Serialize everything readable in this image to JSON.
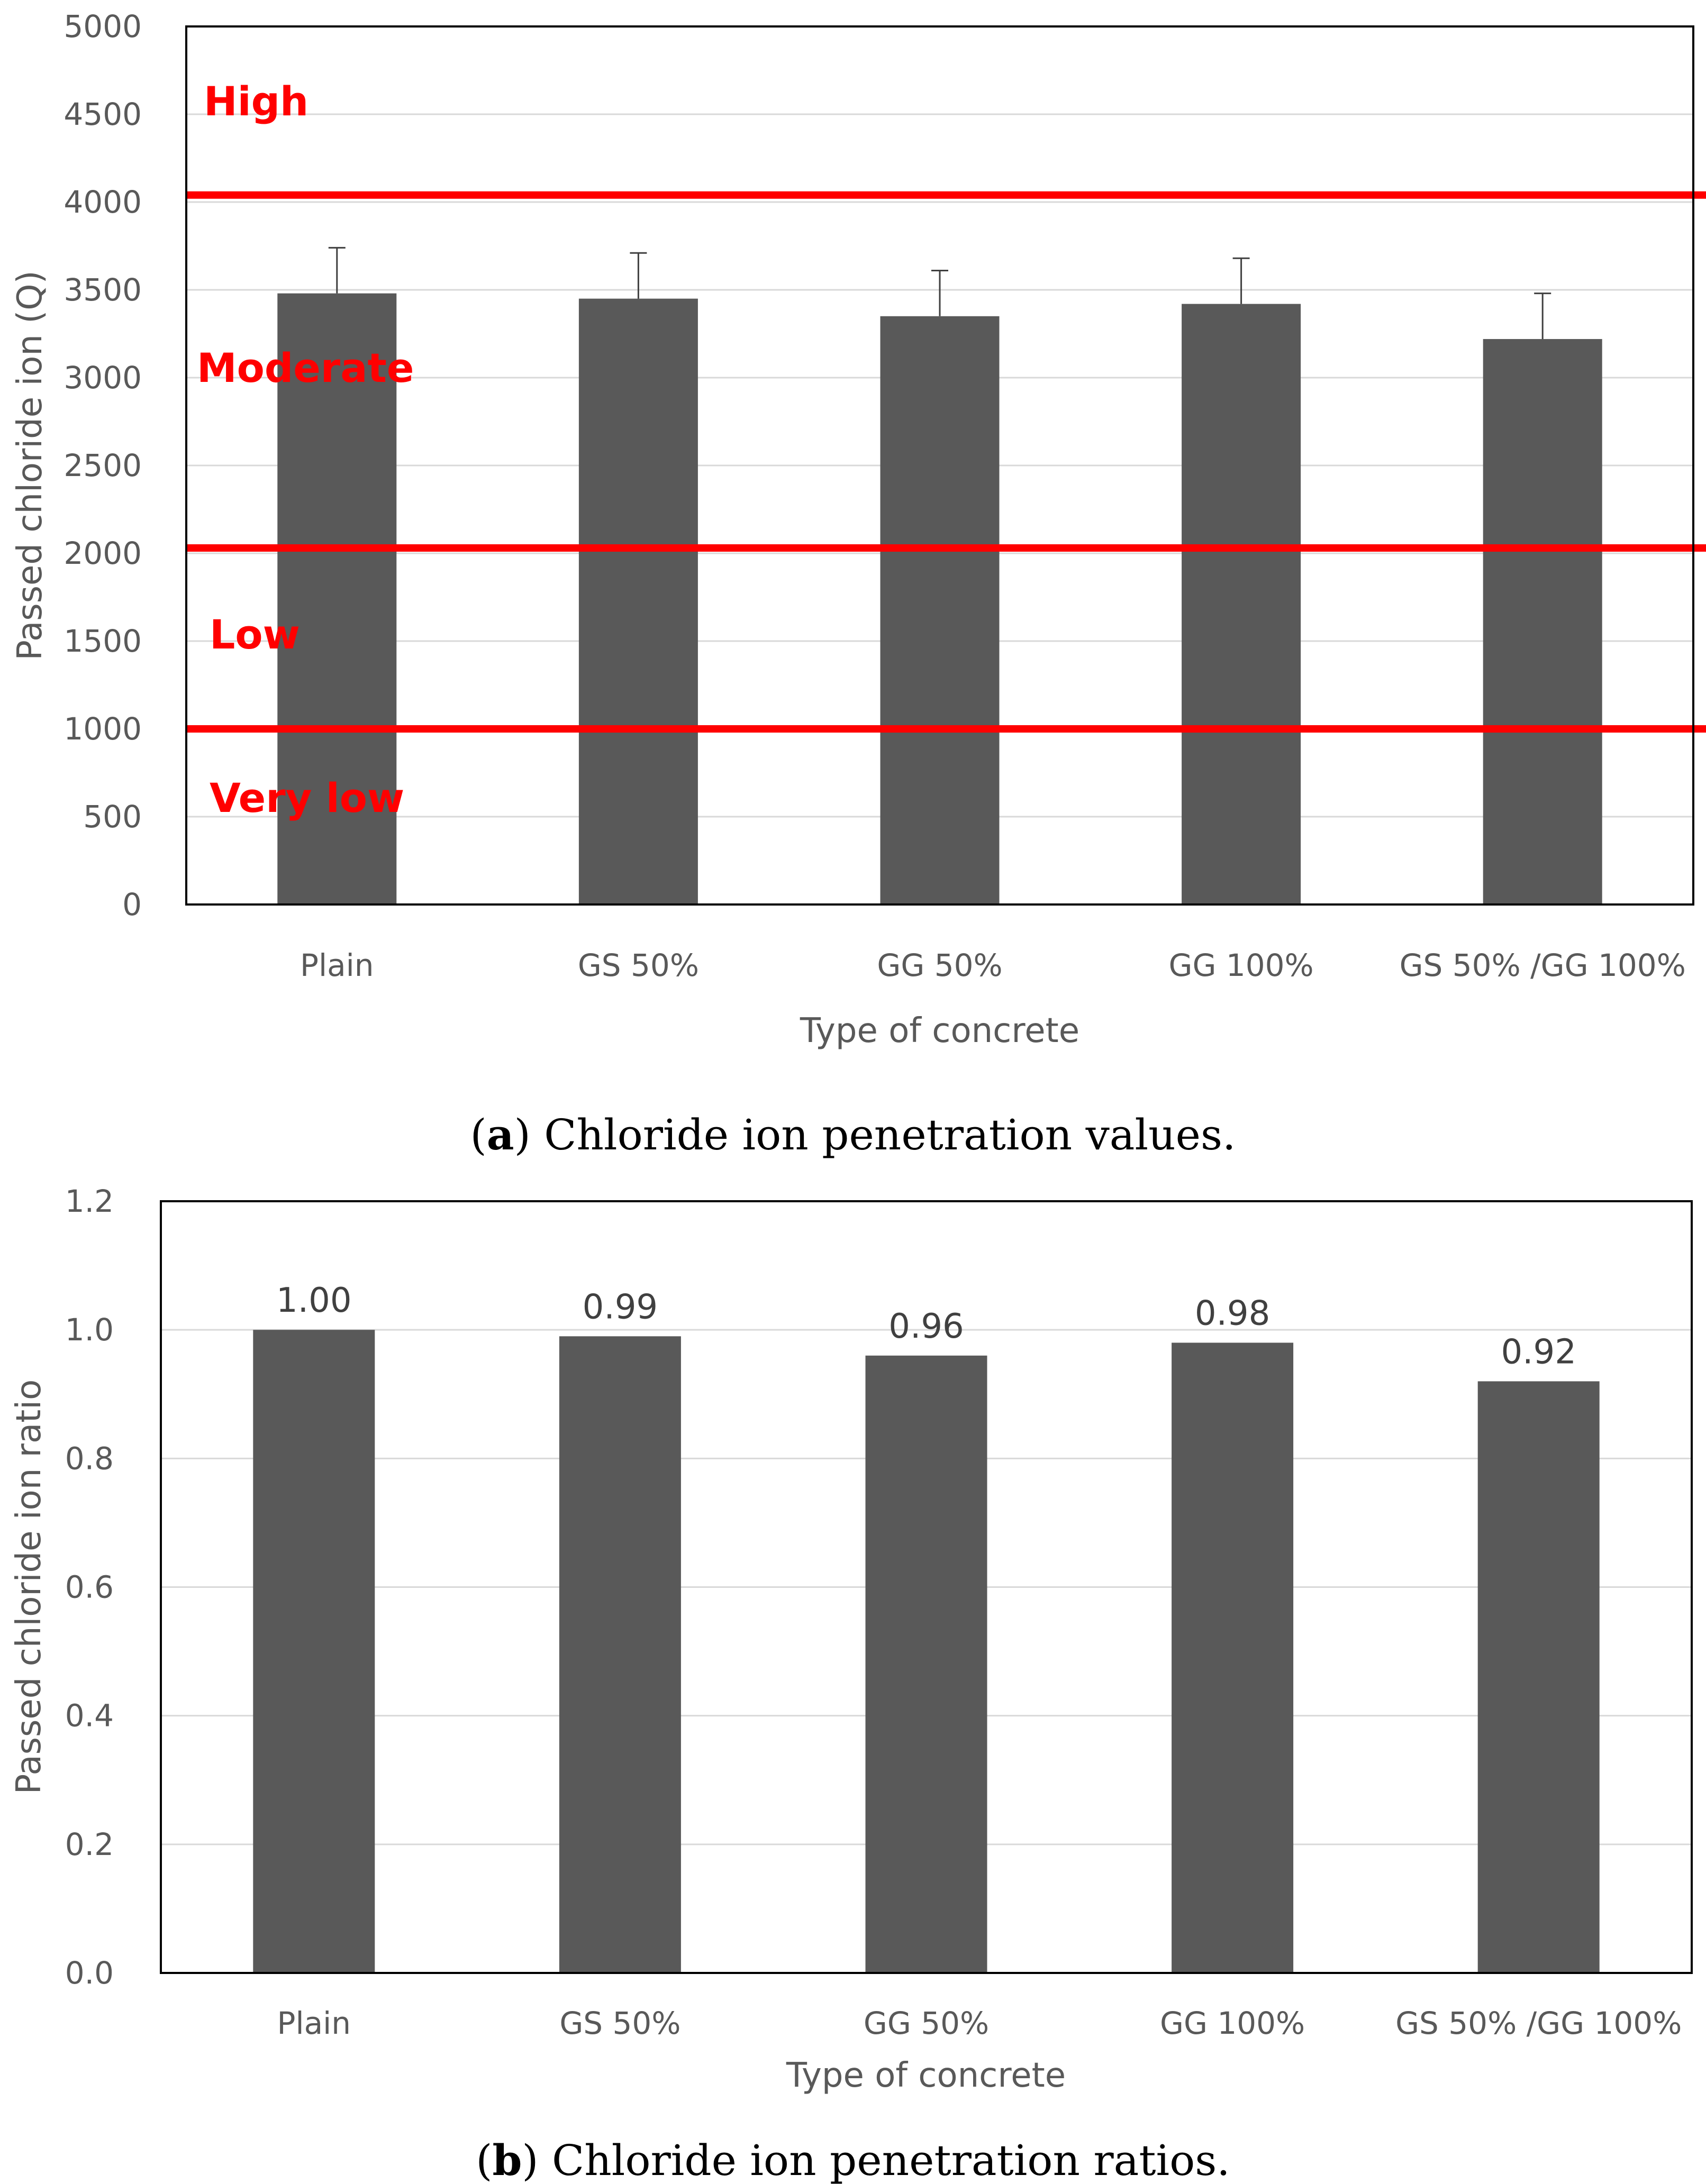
{
  "chart_data": [
    {
      "type": "bar",
      "categories": [
        "Plain",
        "GS 50%",
        "GG 50%",
        "GG 100%",
        "GS 50% /GG 100%"
      ],
      "values": [
        3480,
        3450,
        3350,
        3420,
        3220
      ],
      "error_plus": [
        260,
        260,
        260,
        260,
        260
      ],
      "ylim": [
        0,
        5000
      ],
      "yticks": [
        "0",
        "500",
        "1000",
        "1500",
        "2000",
        "2500",
        "3000",
        "3500",
        "4000",
        "4500",
        "5000"
      ],
      "xlabel": "Type of concrete",
      "ylabel": "Passed chloride ion (Q)",
      "grid": true,
      "bar_color": "#595959",
      "threshold_lines": [
        {
          "value": 4040,
          "color": "#ff0000"
        },
        {
          "value": 2030,
          "color": "#ff0000"
        },
        {
          "value": 1000,
          "color": "#ff0000"
        }
      ],
      "zones": [
        "High",
        "Moderate",
        "Low",
        "Very low"
      ],
      "zone_color": "#ff0000",
      "caption_letter": "a",
      "caption_text": "Chloride ion penetration values."
    },
    {
      "type": "bar",
      "categories": [
        "Plain",
        "GS 50%",
        "GG 50%",
        "GG 100%",
        "GS 50% /GG 100%"
      ],
      "values": [
        1.0,
        0.99,
        0.96,
        0.98,
        0.92
      ],
      "data_labels": [
        "1.00",
        "0.99",
        "0.96",
        "0.98",
        "0.92"
      ],
      "ylim": [
        0,
        1.2
      ],
      "yticks": [
        "0.0",
        "0.2",
        "0.4",
        "0.6",
        "0.8",
        "1.0",
        "1.2"
      ],
      "xlabel": "Type of concrete",
      "ylabel": "Passed chloride ion ratio",
      "grid": true,
      "bar_color": "#595959",
      "caption_letter": "b",
      "caption_text": "Chloride ion penetration ratios."
    }
  ]
}
